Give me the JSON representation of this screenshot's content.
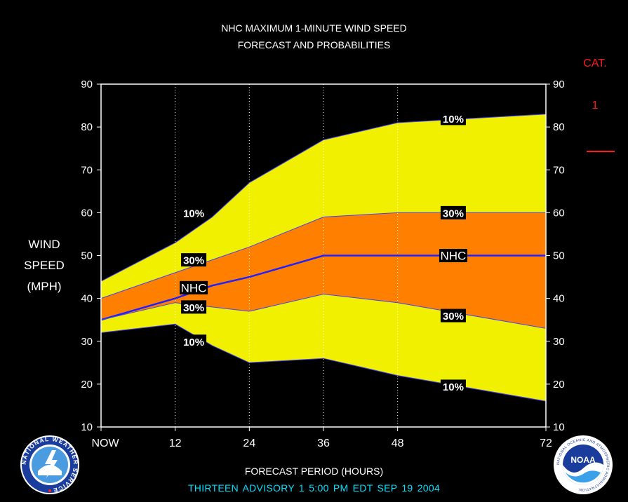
{
  "header": {
    "title_line1": "NHC MAXIMUM 1-MINUTE WIND SPEED",
    "title_line2": "FORECAST AND PROBABILITIES"
  },
  "category": {
    "label": "CAT.",
    "value": "1",
    "color": "#ff1a1a",
    "threshold_mph": 74
  },
  "axis": {
    "ylabel_lines": [
      "WIND",
      "SPEED",
      "(MPH)"
    ],
    "xlabel": "FORECAST PERIOD (HOURS)"
  },
  "footer": {
    "advisory": "THIRTEEN   ADVISORY  1 5:00 PM EDT SEP 19 2004"
  },
  "logos": {
    "nws_text": "NATIONAL WEATHER SERVICE",
    "noaa_text": "NOAA",
    "noaa_ring_text": "NATIONAL OCEANIC AND ATMOSPHERIC ADMINISTRATION"
  },
  "chart_data": {
    "type": "area",
    "title": "NHC MAXIMUM 1-MINUTE WIND SPEED FORECAST AND PROBABILITIES",
    "xlabel": "FORECAST PERIOD (HOURS)",
    "ylabel": "WIND SPEED (MPH)",
    "xlim": [
      0,
      72
    ],
    "ylim": [
      10,
      90
    ],
    "x_ticks": [
      0,
      12,
      24,
      36,
      48,
      72
    ],
    "x_tick_labels": [
      "NOW",
      "12",
      "24",
      "36",
      "48",
      "72"
    ],
    "y_ticks": [
      10,
      20,
      30,
      40,
      50,
      60,
      70,
      80,
      90
    ],
    "y_tick_labels": [
      "10",
      "20",
      "30",
      "40",
      "50",
      "60",
      "70",
      "80",
      "90"
    ],
    "x_gridlines": [
      12,
      24,
      36,
      48
    ],
    "colors": {
      "band_10": "#f0f000",
      "band_30": "#ff8000",
      "nhc_line": "#2020ff",
      "outline": "#4040ff"
    },
    "x": [
      0,
      12,
      18,
      24,
      36,
      48,
      72
    ],
    "series": [
      {
        "name": "10%",
        "values": [
          44,
          53,
          59,
          67,
          77,
          81,
          83
        ]
      },
      {
        "name": "30%",
        "values": [
          40,
          46,
          49,
          52,
          59,
          60,
          60
        ]
      },
      {
        "name": "NHC",
        "values": [
          35,
          40,
          43,
          45,
          50,
          50,
          50
        ]
      },
      {
        "name": "30%",
        "values": [
          35,
          39,
          38,
          37,
          41,
          39,
          33
        ]
      },
      {
        "name": "10%",
        "values": [
          32,
          34,
          29,
          25,
          26,
          22,
          16
        ]
      }
    ],
    "labels": [
      {
        "text": "10%",
        "x": 15,
        "y": 60
      },
      {
        "text": "10%",
        "x": 57,
        "y": 82
      },
      {
        "text": "30%",
        "x": 15,
        "y": 49
      },
      {
        "text": "30%",
        "x": 57,
        "y": 60
      },
      {
        "text": "NHC",
        "x": 15,
        "y": 42.5
      },
      {
        "text": "NHC",
        "x": 57,
        "y": 50
      },
      {
        "text": "30%",
        "x": 15,
        "y": 38
      },
      {
        "text": "30%",
        "x": 57,
        "y": 36
      },
      {
        "text": "10%",
        "x": 15,
        "y": 30
      },
      {
        "text": "10%",
        "x": 57,
        "y": 19.5
      }
    ]
  }
}
